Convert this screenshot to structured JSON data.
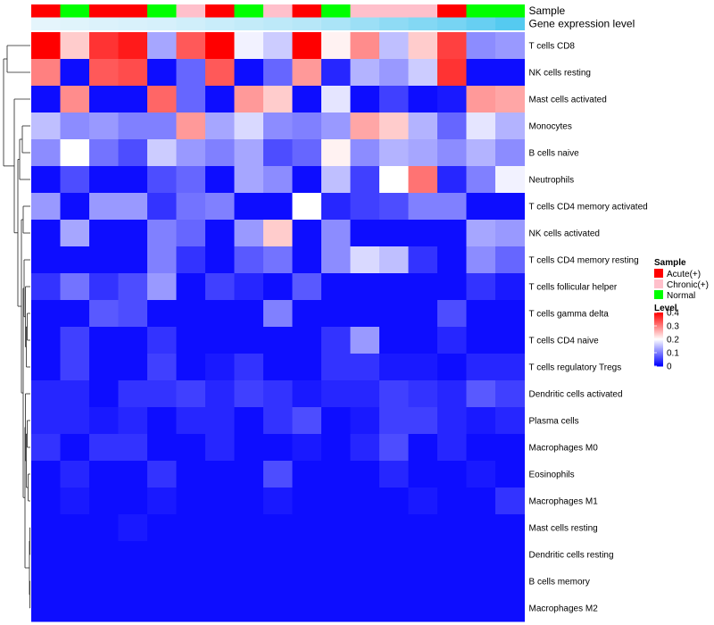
{
  "chart_data": {
    "type": "heatmap",
    "annotation_labels": [
      "Sample",
      "Gene expression level"
    ],
    "sample_groups": [
      "Acute(+)",
      "Normal",
      "Acute(+)",
      "Acute(+)",
      "Normal",
      "Chronic(+)",
      "Acute(+)",
      "Normal",
      "Chronic(+)",
      "Acute(+)",
      "Normal",
      "Chronic(+)",
      "Chronic(+)",
      "Chronic(+)",
      "Acute(+)",
      "Normal",
      "Normal"
    ],
    "gene_expression_level": [
      0.02,
      0.05,
      0.08,
      0.1,
      0.12,
      0.16,
      0.2,
      0.24,
      0.28,
      0.32,
      0.4,
      0.5,
      0.58,
      0.66,
      0.74,
      0.84,
      0.96
    ],
    "rows": [
      "T cells CD8",
      "NK cells resting",
      "Mast cells activated",
      "Monocytes",
      "B cells naive",
      "Neutrophils",
      "T cells CD4 memory activated",
      "NK cells activated",
      "T cells CD4 memory resting",
      "T cells follicular helper",
      "T cells gamma delta",
      "T cells CD4 naive",
      "T cells regulatory  Tregs",
      "Dendritic cells activated",
      "Plasma cells",
      "Macrophages M0",
      "Eosinophils",
      "Macrophages M1",
      "Mast cells resting",
      "Dendritic cells resting",
      "B cells memory",
      "Macrophages M2"
    ],
    "values": [
      [
        0.4,
        0.24,
        0.36,
        0.38,
        0.13,
        0.33,
        0.4,
        0.19,
        0.16,
        0.4,
        0.21,
        0.29,
        0.15,
        0.24,
        0.35,
        0.11,
        0.12
      ],
      [
        0.3,
        0.01,
        0.33,
        0.34,
        0.01,
        0.08,
        0.33,
        0.01,
        0.08,
        0.28,
        0.03,
        0.14,
        0.12,
        0.16,
        0.36,
        0.01,
        0.01
      ],
      [
        0.01,
        0.29,
        0.01,
        0.01,
        0.32,
        0.08,
        0.01,
        0.28,
        0.24,
        0.01,
        0.18,
        0.01,
        0.05,
        0.01,
        0.02,
        0.28,
        0.27
      ],
      [
        0.15,
        0.11,
        0.12,
        0.1,
        0.1,
        0.28,
        0.13,
        0.17,
        0.11,
        0.1,
        0.12,
        0.27,
        0.24,
        0.14,
        0.08,
        0.18,
        0.14
      ],
      [
        0.11,
        0.2,
        0.09,
        0.06,
        0.16,
        0.12,
        0.1,
        0.13,
        0.06,
        0.08,
        0.21,
        0.11,
        0.14,
        0.13,
        0.11,
        0.14,
        0.11
      ],
      [
        0.01,
        0.06,
        0.01,
        0.01,
        0.06,
        0.08,
        0.01,
        0.13,
        0.11,
        0.01,
        0.15,
        0.05,
        0.2,
        0.31,
        0.03,
        0.1,
        0.19
      ],
      [
        0.12,
        0.01,
        0.12,
        0.12,
        0.04,
        0.09,
        0.1,
        0.01,
        0.01,
        0.2,
        0.03,
        0.05,
        0.06,
        0.1,
        0.1,
        0.01,
        0.01
      ],
      [
        0.01,
        0.13,
        0.01,
        0.01,
        0.1,
        0.08,
        0.01,
        0.12,
        0.24,
        0.01,
        0.11,
        0.01,
        0.01,
        0.01,
        0.01,
        0.13,
        0.12
      ],
      [
        0.01,
        0.01,
        0.01,
        0.01,
        0.1,
        0.04,
        0.01,
        0.07,
        0.09,
        0.01,
        0.11,
        0.17,
        0.15,
        0.04,
        0.01,
        0.11,
        0.08
      ],
      [
        0.04,
        0.09,
        0.04,
        0.06,
        0.12,
        0.01,
        0.05,
        0.03,
        0.01,
        0.07,
        0.01,
        0.01,
        0.01,
        0.01,
        0.01,
        0.04,
        0.02
      ],
      [
        0.01,
        0.01,
        0.07,
        0.06,
        0.01,
        0.01,
        0.01,
        0.01,
        0.1,
        0.01,
        0.01,
        0.01,
        0.01,
        0.01,
        0.06,
        0.01,
        0.01
      ],
      [
        0.01,
        0.05,
        0.01,
        0.01,
        0.04,
        0.01,
        0.01,
        0.01,
        0.01,
        0.01,
        0.04,
        0.12,
        0.01,
        0.01,
        0.03,
        0.01,
        0.01
      ],
      [
        0.01,
        0.05,
        0.01,
        0.01,
        0.05,
        0.01,
        0.02,
        0.04,
        0.01,
        0.01,
        0.04,
        0.04,
        0.02,
        0.02,
        0.01,
        0.03,
        0.03
      ],
      [
        0.03,
        0.03,
        0.01,
        0.04,
        0.04,
        0.05,
        0.03,
        0.05,
        0.04,
        0.02,
        0.03,
        0.03,
        0.05,
        0.04,
        0.03,
        0.07,
        0.05
      ],
      [
        0.03,
        0.03,
        0.02,
        0.03,
        0.01,
        0.03,
        0.03,
        0.01,
        0.04,
        0.06,
        0.01,
        0.02,
        0.05,
        0.05,
        0.03,
        0.02,
        0.03
      ],
      [
        0.04,
        0.01,
        0.04,
        0.04,
        0.01,
        0.01,
        0.03,
        0.01,
        0.01,
        0.02,
        0.01,
        0.03,
        0.06,
        0.01,
        0.03,
        0.01,
        0.01
      ],
      [
        0.01,
        0.03,
        0.01,
        0.01,
        0.04,
        0.01,
        0.01,
        0.01,
        0.06,
        0.01,
        0.01,
        0.01,
        0.03,
        0.01,
        0.01,
        0.02,
        0.01
      ],
      [
        0.01,
        0.02,
        0.01,
        0.01,
        0.02,
        0.01,
        0.01,
        0.01,
        0.02,
        0.01,
        0.01,
        0.01,
        0.01,
        0.02,
        0.01,
        0.01,
        0.04
      ],
      [
        0.01,
        0.01,
        0.01,
        0.02,
        0.01,
        0.01,
        0.01,
        0.01,
        0.01,
        0.01,
        0.01,
        0.01,
        0.01,
        0.01,
        0.01,
        0.01,
        0.01
      ],
      [
        0.01,
        0.01,
        0.01,
        0.01,
        0.01,
        0.01,
        0.01,
        0.01,
        0.01,
        0.01,
        0.01,
        0.01,
        0.01,
        0.01,
        0.01,
        0.01,
        0.01
      ],
      [
        0.01,
        0.01,
        0.01,
        0.01,
        0.01,
        0.01,
        0.01,
        0.01,
        0.01,
        0.01,
        0.01,
        0.01,
        0.01,
        0.01,
        0.01,
        0.01,
        0.01
      ],
      [
        0.01,
        0.01,
        0.01,
        0.01,
        0.01,
        0.01,
        0.01,
        0.01,
        0.01,
        0.01,
        0.01,
        0.01,
        0.01,
        0.01,
        0.01,
        0.01,
        0.01
      ]
    ],
    "color_scale": {
      "low": "#0000ff",
      "mid": "#ffffff",
      "high": "#ff0000",
      "min": 0,
      "mid_value": 0.2,
      "max": 0.4
    },
    "legend": {
      "sample_title": "Sample",
      "sample_entries": [
        {
          "label": "Acute(+)",
          "color": "#ff0000"
        },
        {
          "label": "Chronic(+)",
          "color": "#ffc0cb"
        },
        {
          "label": "Normal",
          "color": "#00ff00"
        }
      ],
      "level_title": "Level",
      "level_ticks": [
        "0.4",
        "0.3",
        "0.2",
        "0.1",
        "0"
      ],
      "level_tick_values": [
        0.4,
        0.3,
        0.2,
        0.1,
        0
      ],
      "placement": "right"
    },
    "dendrogram": "left"
  }
}
